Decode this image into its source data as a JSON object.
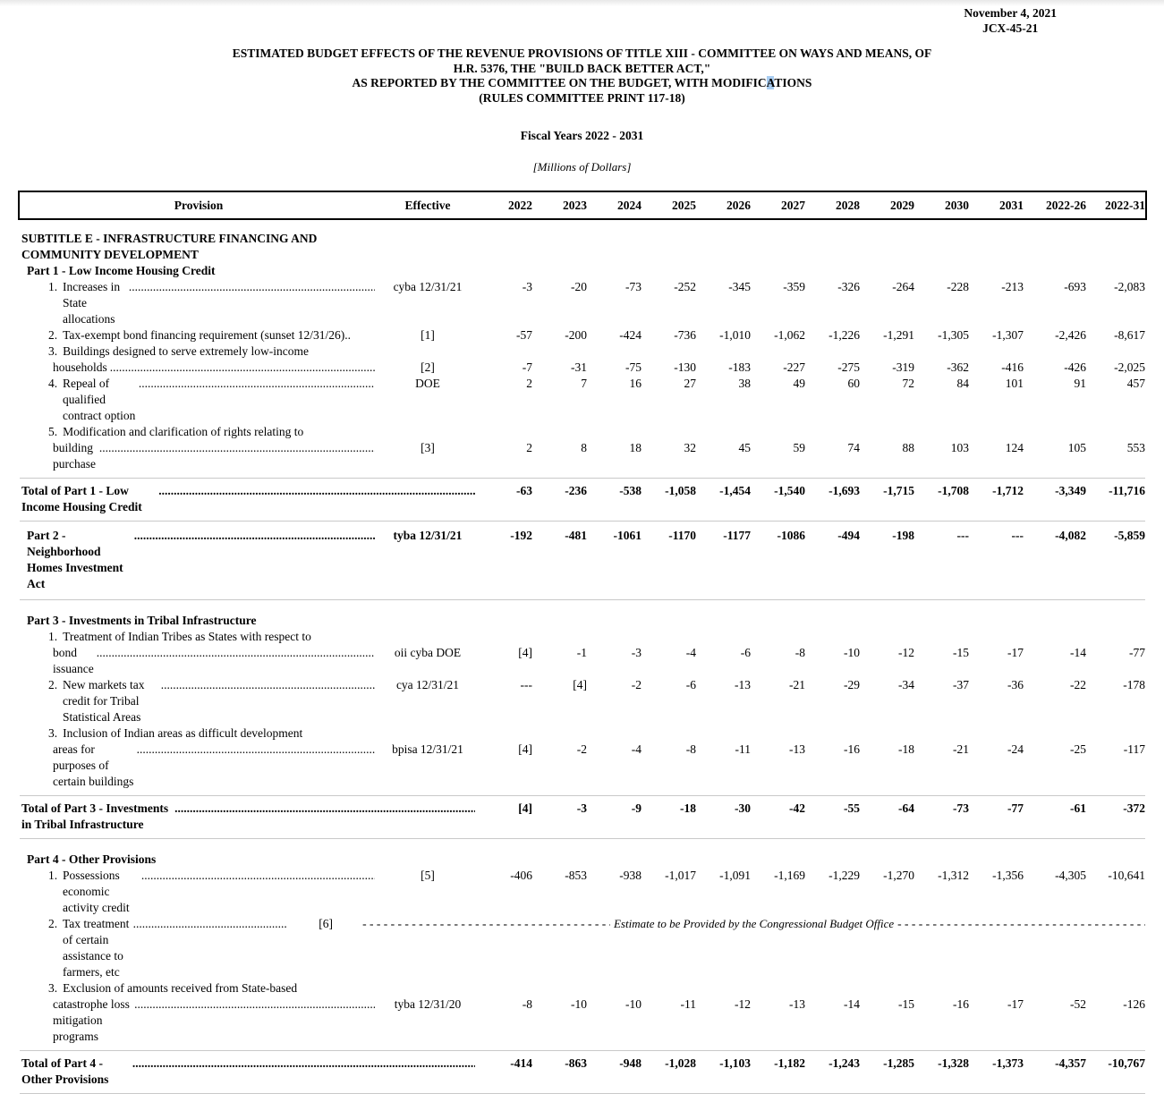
{
  "page": {
    "date": "November 4, 2021",
    "doc_number": "JCX-45-21",
    "title_line1": "ESTIMATED BUDGET EFFECTS OF THE REVENUE PROVISIONS OF TITLE XIII - COMMITTEE ON WAYS AND MEANS, OF",
    "title_line2": "H.R. 5376, THE \"BUILD BACK BETTER ACT,\"",
    "title_line3_pre": "AS REPORTED BY THE COMMITTEE ON THE BUDGET, WITH MODIFIC",
    "title_line3_highlight": "A",
    "title_line3_post": "TIONS",
    "title_line4": "(RULES COMMITTEE PRINT 117-18)",
    "fiscal_years": "Fiscal Years 2022 - 2031",
    "units": "[Millions of Dollars]",
    "highlight_color": "#a9cdf1"
  },
  "table": {
    "columns": [
      "Provision",
      "Effective",
      "2022",
      "2023",
      "2024",
      "2025",
      "2026",
      "2027",
      "2028",
      "2029",
      "2030",
      "2031",
      "2022-26",
      "2022-31"
    ],
    "rows": [
      {
        "type": "subtitle",
        "lines": [
          "SUBTITLE E - INFRASTRUCTURE FINANCING AND",
          "COMMUNITY DEVELOPMENT"
        ]
      },
      {
        "type": "part",
        "label": "Part 1 - Low Income Housing Credit"
      },
      {
        "type": "item",
        "num": "1.",
        "lines": [
          "Increases in State allocations"
        ],
        "effective": "cyba 12/31/21",
        "values": [
          "-3",
          "-20",
          "-73",
          "-252",
          "-345",
          "-359",
          "-326",
          "-264",
          "-228",
          "-213",
          "-693",
          "-2,083"
        ]
      },
      {
        "type": "item",
        "num": "2.",
        "lines": [
          "Tax-exempt bond financing requirement (sunset 12/31/26).."
        ],
        "dots": false,
        "effective": "[1]",
        "values": [
          "-57",
          "-200",
          "-424",
          "-736",
          "-1,010",
          "-1,062",
          "-1,226",
          "-1,291",
          "-1,305",
          "-1,307",
          "-2,426",
          "-8,617"
        ]
      },
      {
        "type": "item",
        "num": "3.",
        "lines": [
          "Buildings designed to serve extremely low-income",
          "households"
        ],
        "effective": "[2]",
        "values": [
          "-7",
          "-31",
          "-75",
          "-130",
          "-183",
          "-227",
          "-275",
          "-319",
          "-362",
          "-416",
          "-426",
          "-2,025"
        ]
      },
      {
        "type": "item",
        "num": "4.",
        "lines": [
          "Repeal of qualified contract option"
        ],
        "effective": "DOE",
        "values": [
          "2",
          "7",
          "16",
          "27",
          "38",
          "49",
          "60",
          "72",
          "84",
          "101",
          "91",
          "457"
        ]
      },
      {
        "type": "item",
        "num": "5.",
        "lines": [
          "Modification and clarification of rights relating to",
          "building purchase"
        ],
        "effective": "[3]",
        "values": [
          "2",
          "8",
          "18",
          "32",
          "45",
          "59",
          "74",
          "88",
          "103",
          "124",
          "105",
          "553"
        ]
      },
      {
        "type": "total",
        "label": "Total of Part 1 - Low Income Housing Credit",
        "values": [
          "-63",
          "-236",
          "-538",
          "-1,058",
          "-1,454",
          "-1,540",
          "-1,693",
          "-1,715",
          "-1,708",
          "-1,712",
          "-3,349",
          "-11,716"
        ]
      },
      {
        "type": "part2",
        "label": "Part 2 - Neighborhood Homes Investment Act",
        "effective": "tyba 12/31/21",
        "values": [
          "-192",
          "-481",
          "-1061",
          "-1170",
          "-1177",
          "-1086",
          "-494",
          "-198",
          "---",
          "---",
          "-4,082",
          "-5,859"
        ]
      },
      {
        "type": "part",
        "label": "Part 3 - Investments in Tribal Infrastructure"
      },
      {
        "type": "item",
        "num": "1.",
        "lines": [
          "Treatment of Indian Tribes as States with respect to",
          "bond issuance"
        ],
        "effective": "oii cyba DOE",
        "values": [
          "[4]",
          "-1",
          "-3",
          "-4",
          "-6",
          "-8",
          "-10",
          "-12",
          "-15",
          "-17",
          "-14",
          "-77"
        ]
      },
      {
        "type": "item",
        "num": "2.",
        "lines": [
          "New markets tax credit for Tribal Statistical Areas"
        ],
        "effective": "cya 12/31/21",
        "values": [
          "---",
          "[4]",
          "-2",
          "-6",
          "-13",
          "-21",
          "-29",
          "-34",
          "-37",
          "-36",
          "-22",
          "-178"
        ]
      },
      {
        "type": "item",
        "num": "3.",
        "lines": [
          "Inclusion of Indian areas as difficult development",
          "areas for purposes of certain buildings"
        ],
        "effective": "bpisa 12/31/21",
        "values": [
          "[4]",
          "-2",
          "-4",
          "-8",
          "-11",
          "-13",
          "-16",
          "-18",
          "-21",
          "-24",
          "-25",
          "-117"
        ]
      },
      {
        "type": "total",
        "label": "Total of Part 3 - Investments in Tribal Infrastructure",
        "values": [
          "[4]",
          "-3",
          "-9",
          "-18",
          "-30",
          "-42",
          "-55",
          "-64",
          "-73",
          "-77",
          "-61",
          "-372"
        ]
      },
      {
        "type": "part",
        "label": "Part 4 - Other Provisions"
      },
      {
        "type": "item",
        "num": "1.",
        "lines": [
          "Possessions economic activity credit"
        ],
        "effective": "[5]",
        "values": [
          "-406",
          "-853",
          "-938",
          "-1,017",
          "-1,091",
          "-1,169",
          "-1,229",
          "-1,270",
          "-1,312",
          "-1,356",
          "-4,305",
          "-10,641"
        ]
      },
      {
        "type": "item",
        "num": "2.",
        "lines": [
          "Tax treatment of certain assistance to farmers, etc"
        ],
        "effective": "[6]",
        "note": "Estimate to be Provided by the Congressional Budget Office"
      },
      {
        "type": "item",
        "num": "3.",
        "lines": [
          "Exclusion of amounts received from State-based",
          "catastrophe loss mitigation programs"
        ],
        "effective": "tyba 12/31/20",
        "values": [
          "-8",
          "-10",
          "-10",
          "-11",
          "-12",
          "-13",
          "-14",
          "-15",
          "-16",
          "-17",
          "-52",
          "-126"
        ]
      },
      {
        "type": "total",
        "label": "Total of Part 4 - Other Provisions",
        "values": [
          "-414",
          "-863",
          "-948",
          "-1,028",
          "-1,103",
          "-1,182",
          "-1,243",
          "-1,285",
          "-1,328",
          "-1,373",
          "-4,357",
          "-10,767"
        ]
      }
    ]
  }
}
